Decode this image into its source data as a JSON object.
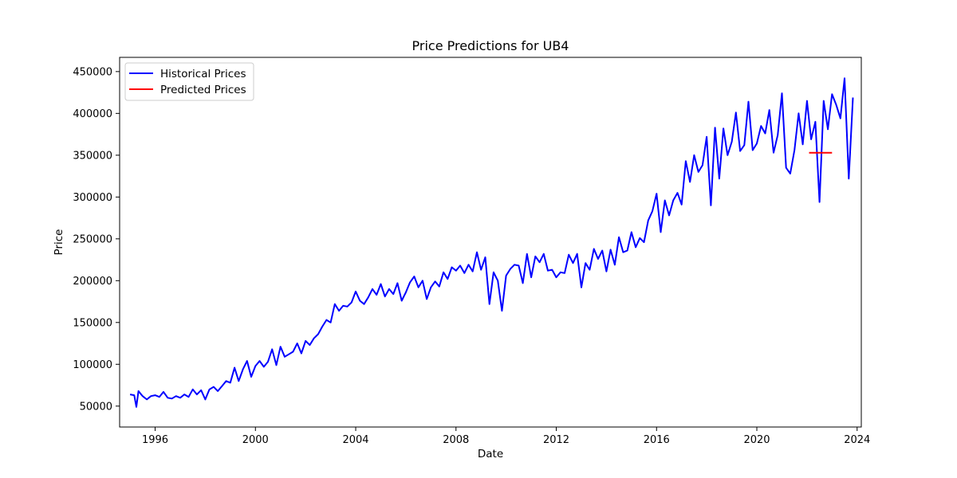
{
  "chart_data": {
    "type": "line",
    "title": "Price Predictions for UB4",
    "xlabel": "Date",
    "ylabel": "Price",
    "xlim": [
      "1994-08-01",
      "2024-03-01"
    ],
    "ylim": [
      25000,
      467000
    ],
    "x_ticks": [
      "1996",
      "2000",
      "2004",
      "2008",
      "2012",
      "2016",
      "2020",
      "2024"
    ],
    "y_ticks": [
      50000,
      100000,
      150000,
      200000,
      250000,
      300000,
      350000,
      400000,
      450000
    ],
    "grid": false,
    "legend": "top-left",
    "series": [
      {
        "name": "Historical Prices",
        "color": "#0000ff",
        "points": [
          [
            "1995-01",
            64000
          ],
          [
            "1995-03",
            63000
          ],
          [
            "1995-04",
            49000
          ],
          [
            "1995-05",
            68000
          ],
          [
            "1995-07",
            62000
          ],
          [
            "1995-09",
            58000
          ],
          [
            "1995-11",
            62000
          ],
          [
            "1996-01",
            63000
          ],
          [
            "1996-03",
            61000
          ],
          [
            "1996-05",
            67000
          ],
          [
            "1996-07",
            60000
          ],
          [
            "1996-09",
            59000
          ],
          [
            "1996-11",
            62000
          ],
          [
            "1997-01",
            60000
          ],
          [
            "1997-03",
            64000
          ],
          [
            "1997-05",
            61000
          ],
          [
            "1997-07",
            70000
          ],
          [
            "1997-09",
            64000
          ],
          [
            "1997-11",
            69000
          ],
          [
            "1998-01",
            58000
          ],
          [
            "1998-03",
            70000
          ],
          [
            "1998-05",
            73000
          ],
          [
            "1998-07",
            68000
          ],
          [
            "1998-09",
            74000
          ],
          [
            "1998-11",
            80000
          ],
          [
            "1999-01",
            78000
          ],
          [
            "1999-03",
            96000
          ],
          [
            "1999-05",
            80000
          ],
          [
            "1999-07",
            94000
          ],
          [
            "1999-09",
            104000
          ],
          [
            "1999-11",
            85000
          ],
          [
            "2000-01",
            98000
          ],
          [
            "2000-03",
            104000
          ],
          [
            "2000-05",
            97000
          ],
          [
            "2000-07",
            103000
          ],
          [
            "2000-09",
            118000
          ],
          [
            "2000-11",
            99000
          ],
          [
            "2001-01",
            121000
          ],
          [
            "2001-03",
            109000
          ],
          [
            "2001-05",
            112000
          ],
          [
            "2001-07",
            115000
          ],
          [
            "2001-09",
            125000
          ],
          [
            "2001-11",
            113000
          ],
          [
            "2002-01",
            128000
          ],
          [
            "2002-03",
            123000
          ],
          [
            "2002-05",
            131000
          ],
          [
            "2002-07",
            136000
          ],
          [
            "2002-09",
            145000
          ],
          [
            "2002-11",
            153000
          ],
          [
            "2003-01",
            150000
          ],
          [
            "2003-03",
            172000
          ],
          [
            "2003-05",
            164000
          ],
          [
            "2003-07",
            170000
          ],
          [
            "2003-09",
            169000
          ],
          [
            "2003-11",
            174000
          ],
          [
            "2004-01",
            187000
          ],
          [
            "2004-03",
            176000
          ],
          [
            "2004-05",
            172000
          ],
          [
            "2004-07",
            180000
          ],
          [
            "2004-09",
            190000
          ],
          [
            "2004-11",
            183000
          ],
          [
            "2005-01",
            196000
          ],
          [
            "2005-03",
            181000
          ],
          [
            "2005-05",
            190000
          ],
          [
            "2005-07",
            184000
          ],
          [
            "2005-09",
            197000
          ],
          [
            "2005-11",
            176000
          ],
          [
            "2006-01",
            186000
          ],
          [
            "2006-03",
            198000
          ],
          [
            "2006-05",
            205000
          ],
          [
            "2006-07",
            192000
          ],
          [
            "2006-09",
            200000
          ],
          [
            "2006-11",
            178000
          ],
          [
            "2007-01",
            192000
          ],
          [
            "2007-03",
            199000
          ],
          [
            "2007-05",
            193000
          ],
          [
            "2007-07",
            210000
          ],
          [
            "2007-09",
            202000
          ],
          [
            "2007-11",
            216000
          ],
          [
            "2008-01",
            212000
          ],
          [
            "2008-03",
            218000
          ],
          [
            "2008-05",
            209000
          ],
          [
            "2008-07",
            219000
          ],
          [
            "2008-09",
            211000
          ],
          [
            "2008-11",
            234000
          ],
          [
            "2009-01",
            213000
          ],
          [
            "2009-03",
            228000
          ],
          [
            "2009-05",
            172000
          ],
          [
            "2009-07",
            210000
          ],
          [
            "2009-09",
            200000
          ],
          [
            "2009-11",
            164000
          ],
          [
            "2010-01",
            206000
          ],
          [
            "2010-03",
            214000
          ],
          [
            "2010-05",
            219000
          ],
          [
            "2010-07",
            218000
          ],
          [
            "2010-09",
            197000
          ],
          [
            "2010-11",
            232000
          ],
          [
            "2011-01",
            204000
          ],
          [
            "2011-03",
            229000
          ],
          [
            "2011-05",
            222000
          ],
          [
            "2011-07",
            232000
          ],
          [
            "2011-09",
            212000
          ],
          [
            "2011-11",
            213000
          ],
          [
            "2012-01",
            204000
          ],
          [
            "2012-03",
            210000
          ],
          [
            "2012-05",
            209000
          ],
          [
            "2012-07",
            231000
          ],
          [
            "2012-09",
            221000
          ],
          [
            "2012-11",
            232000
          ],
          [
            "2013-01",
            192000
          ],
          [
            "2013-03",
            221000
          ],
          [
            "2013-05",
            213000
          ],
          [
            "2013-07",
            238000
          ],
          [
            "2013-09",
            226000
          ],
          [
            "2013-11",
            236000
          ],
          [
            "2014-01",
            211000
          ],
          [
            "2014-03",
            237000
          ],
          [
            "2014-05",
            219000
          ],
          [
            "2014-07",
            252000
          ],
          [
            "2014-09",
            234000
          ],
          [
            "2014-11",
            236000
          ],
          [
            "2015-01",
            258000
          ],
          [
            "2015-03",
            240000
          ],
          [
            "2015-05",
            251000
          ],
          [
            "2015-07",
            246000
          ],
          [
            "2015-09",
            272000
          ],
          [
            "2015-11",
            283000
          ],
          [
            "2016-01",
            304000
          ],
          [
            "2016-03",
            258000
          ],
          [
            "2016-05",
            296000
          ],
          [
            "2016-07",
            278000
          ],
          [
            "2016-09",
            296000
          ],
          [
            "2016-11",
            305000
          ],
          [
            "2017-01",
            291000
          ],
          [
            "2017-03",
            343000
          ],
          [
            "2017-05",
            318000
          ],
          [
            "2017-07",
            350000
          ],
          [
            "2017-09",
            330000
          ],
          [
            "2017-11",
            338000
          ],
          [
            "2018-01",
            372000
          ],
          [
            "2018-03",
            290000
          ],
          [
            "2018-05",
            383000
          ],
          [
            "2018-07",
            322000
          ],
          [
            "2018-09",
            382000
          ],
          [
            "2018-11",
            350000
          ],
          [
            "2019-01",
            366000
          ],
          [
            "2019-03",
            401000
          ],
          [
            "2019-05",
            355000
          ],
          [
            "2019-07",
            362000
          ],
          [
            "2019-09",
            414000
          ],
          [
            "2019-11",
            356000
          ],
          [
            "2020-01",
            364000
          ],
          [
            "2020-03",
            385000
          ],
          [
            "2020-05",
            376000
          ],
          [
            "2020-07",
            404000
          ],
          [
            "2020-09",
            353000
          ],
          [
            "2020-11",
            374000
          ],
          [
            "2021-01",
            424000
          ],
          [
            "2021-03",
            335000
          ],
          [
            "2021-05",
            328000
          ],
          [
            "2021-07",
            356000
          ],
          [
            "2021-09",
            400000
          ],
          [
            "2021-11",
            363000
          ],
          [
            "2022-01",
            415000
          ],
          [
            "2022-03",
            369000
          ],
          [
            "2022-05",
            390000
          ],
          [
            "2022-07",
            294000
          ],
          [
            "2022-09",
            415000
          ],
          [
            "2022-11",
            381000
          ],
          [
            "2023-01",
            423000
          ],
          [
            "2023-03",
            410000
          ],
          [
            "2023-05",
            394000
          ],
          [
            "2023-07",
            442000
          ],
          [
            "2023-09",
            322000
          ],
          [
            "2023-11",
            419000
          ]
        ]
      },
      {
        "name": "Predicted Prices",
        "color": "#ff0000",
        "points": [
          [
            "2022-02",
            353000
          ],
          [
            "2023-01",
            353000
          ]
        ]
      }
    ]
  }
}
